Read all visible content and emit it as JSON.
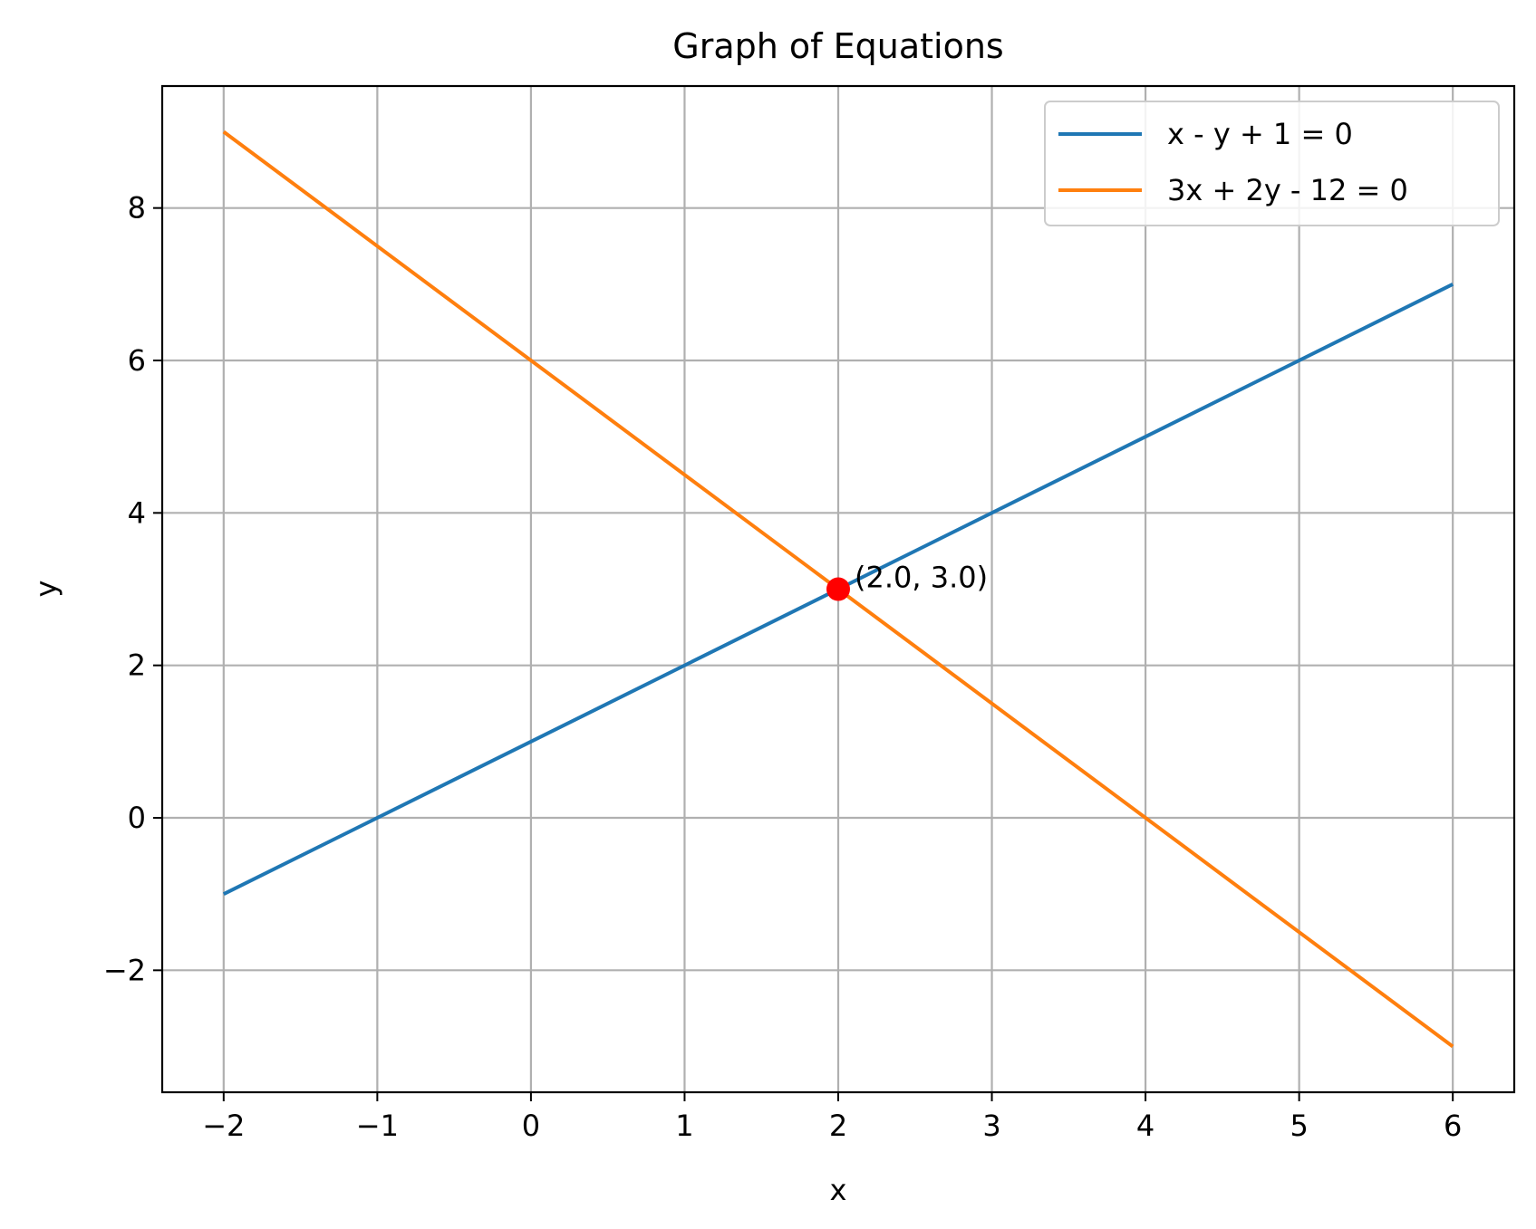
{
  "chart_data": {
    "type": "line",
    "title": "Graph of Equations",
    "xlabel": "x",
    "ylabel": "y",
    "xlim": [
      -2.4,
      6.4
    ],
    "ylim": [
      -3.6,
      9.6
    ],
    "xticks": [
      -2,
      -1,
      0,
      1,
      2,
      3,
      4,
      5,
      6
    ],
    "yticks": [
      -2,
      0,
      2,
      4,
      6,
      8
    ],
    "xtick_labels": [
      "−2",
      "−1",
      "0",
      "1",
      "2",
      "3",
      "4",
      "5",
      "6"
    ],
    "ytick_labels": [
      "−2",
      "0",
      "2",
      "4",
      "6",
      "8"
    ],
    "grid": true,
    "legend_position": "top-right",
    "series": [
      {
        "name": "x - y + 1 = 0",
        "color": "#1f77b4",
        "x": [
          -2,
          6
        ],
        "y": [
          -1,
          7
        ]
      },
      {
        "name": "3x + 2y - 12 = 0",
        "color": "#ff7f0e",
        "x": [
          -2,
          6
        ],
        "y": [
          9,
          -3
        ]
      }
    ],
    "points": [
      {
        "x": 2.0,
        "y": 3.0,
        "color": "#ff0000",
        "label": "(2.0, 3.0)"
      }
    ]
  }
}
